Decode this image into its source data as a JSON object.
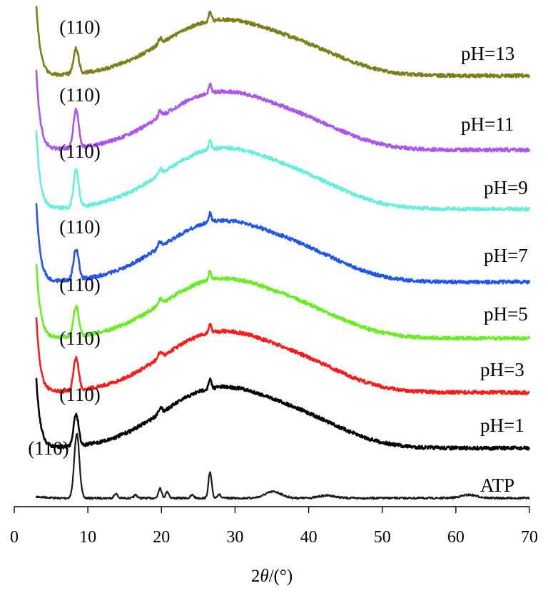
{
  "chart_data": {
    "type": "line",
    "title": "",
    "xlabel_parts": {
      "prefix": "2",
      "symbol": "θ",
      "suffix": "/(°)"
    },
    "ylabel": "",
    "xlim": [
      0,
      70
    ],
    "x_ticks": [
      "0",
      "10",
      "20",
      "30",
      "40",
      "50",
      "60",
      "70"
    ],
    "y_axis_shown": false,
    "grid": false,
    "peak_label": "(110)",
    "series": [
      {
        "name": "ATP",
        "color": "#1a1a1a",
        "style": "crystalline",
        "peaks": [
          [
            8.5,
            1.0
          ],
          [
            13.8,
            0.07
          ],
          [
            16.5,
            0.05
          ],
          [
            19.8,
            0.16
          ],
          [
            20.8,
            0.1
          ],
          [
            24.2,
            0.05
          ],
          [
            26.6,
            0.4
          ],
          [
            27.8,
            0.06
          ],
          [
            35.2,
            0.1
          ],
          [
            42.5,
            0.04
          ],
          [
            61.8,
            0.05
          ]
        ]
      },
      {
        "name": "pH=1",
        "color": "#000000",
        "style": "amorphous",
        "peak_110": 0.33
      },
      {
        "name": "pH=3",
        "color": "#ff1a1a",
        "style": "amorphous",
        "peak_110": 0.35
      },
      {
        "name": "pH=5",
        "color": "#66ee22",
        "style": "amorphous",
        "peak_110": 0.35
      },
      {
        "name": "pH=7",
        "color": "#2255ee",
        "style": "amorphous",
        "peak_110": 0.38
      },
      {
        "name": "pH=9",
        "color": "#66eedd",
        "style": "amorphous",
        "peak_110": 0.42
      },
      {
        "name": "pH=11",
        "color": "#aa55ee",
        "style": "amorphous",
        "peak_110": 0.45
      },
      {
        "name": "pH=13",
        "color": "#7a7f1a",
        "style": "amorphous",
        "peak_110": 0.25
      }
    ]
  }
}
